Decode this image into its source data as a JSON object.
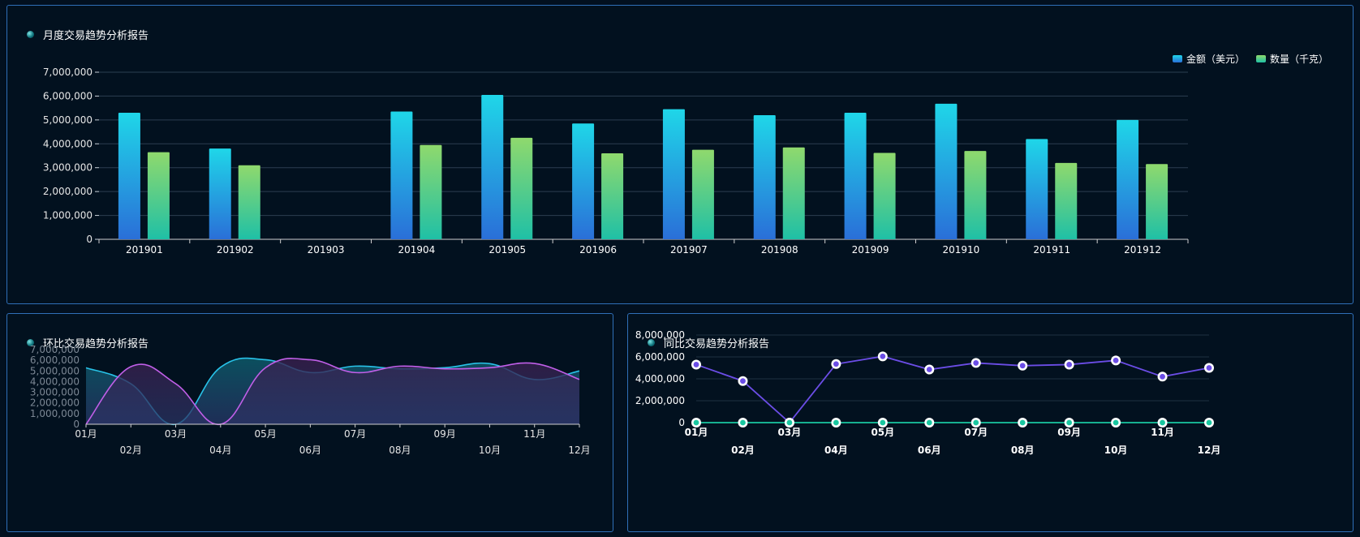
{
  "panels": {
    "top": {
      "title": "月度交易趋势分析报告"
    },
    "bottom_left": {
      "title": "环比交易趋势分析报告"
    },
    "bottom_right": {
      "title": "同比交易趋势分析报告"
    }
  },
  "chart_data": [
    {
      "type": "bar",
      "categories": [
        "201901",
        "201902",
        "201903",
        "201904",
        "201905",
        "201906",
        "201907",
        "201908",
        "201909",
        "201910",
        "201911",
        "201912"
      ],
      "series": [
        {
          "name": "金额（美元）",
          "values": [
            5300000,
            3800000,
            0,
            5350000,
            6050000,
            4850000,
            5450000,
            5200000,
            5300000,
            5680000,
            4200000,
            5000000
          ]
        },
        {
          "name": "数量（千克）",
          "values": [
            3650000,
            3100000,
            0,
            3950000,
            4250000,
            3600000,
            3750000,
            3850000,
            3620000,
            3700000,
            3200000,
            3150000
          ]
        }
      ],
      "ylim": [
        0,
        7000000
      ],
      "yticks": [
        "7,000,000",
        "6,000,000",
        "5,000,000",
        "4,000,000",
        "3,000,000",
        "2,000,000",
        "1,000,000",
        "0"
      ],
      "colors": {
        "series0_top": "#1fd6e8",
        "series0_bottom": "#2a6fd8",
        "series1_top": "#8fd96d",
        "series1_bottom": "#1fc0a6",
        "grid": "#2c3e50"
      },
      "legend": "top-right"
    },
    {
      "type": "area",
      "categories": [
        "01月",
        "02月",
        "03月",
        "04月",
        "05月",
        "06月",
        "07月",
        "08月",
        "09月",
        "10月",
        "11月",
        "12月"
      ],
      "series": [
        {
          "values": [
            5300000,
            3800000,
            0,
            5350000,
            6050000,
            4850000,
            5450000,
            5200000,
            5300000,
            5680000,
            4200000,
            5000000
          ],
          "color": "#28c2e8"
        },
        {
          "values": [
            0,
            5400000,
            3800000,
            0,
            5300000,
            6050000,
            4850000,
            5450000,
            5200000,
            5300000,
            5700000,
            4200000
          ],
          "color": "#c05fe8"
        }
      ],
      "ylim": [
        0,
        7000000
      ],
      "yticks": [
        "7,000,000",
        "6,000,000",
        "5,000,000",
        "4,000,000",
        "3,000,000",
        "2,000,000",
        "1,000,000",
        "0"
      ]
    },
    {
      "type": "line",
      "categories": [
        "01月",
        "02月",
        "03月",
        "04月",
        "05月",
        "06月",
        "07月",
        "08月",
        "09月",
        "10月",
        "11月",
        "12月"
      ],
      "series": [
        {
          "values": [
            5300000,
            3800000,
            0,
            5350000,
            6050000,
            4850000,
            5450000,
            5200000,
            5300000,
            5680000,
            4200000,
            5000000
          ],
          "color": "#6b4de6"
        },
        {
          "values": [
            0,
            0,
            0,
            0,
            0,
            0,
            0,
            0,
            0,
            0,
            0,
            0
          ],
          "color": "#19c7a0"
        }
      ],
      "ylim": [
        0,
        8000000
      ],
      "yticks": [
        "8,000,000",
        "6,000,000",
        "4,000,000",
        "2,000,000",
        "0"
      ]
    }
  ]
}
